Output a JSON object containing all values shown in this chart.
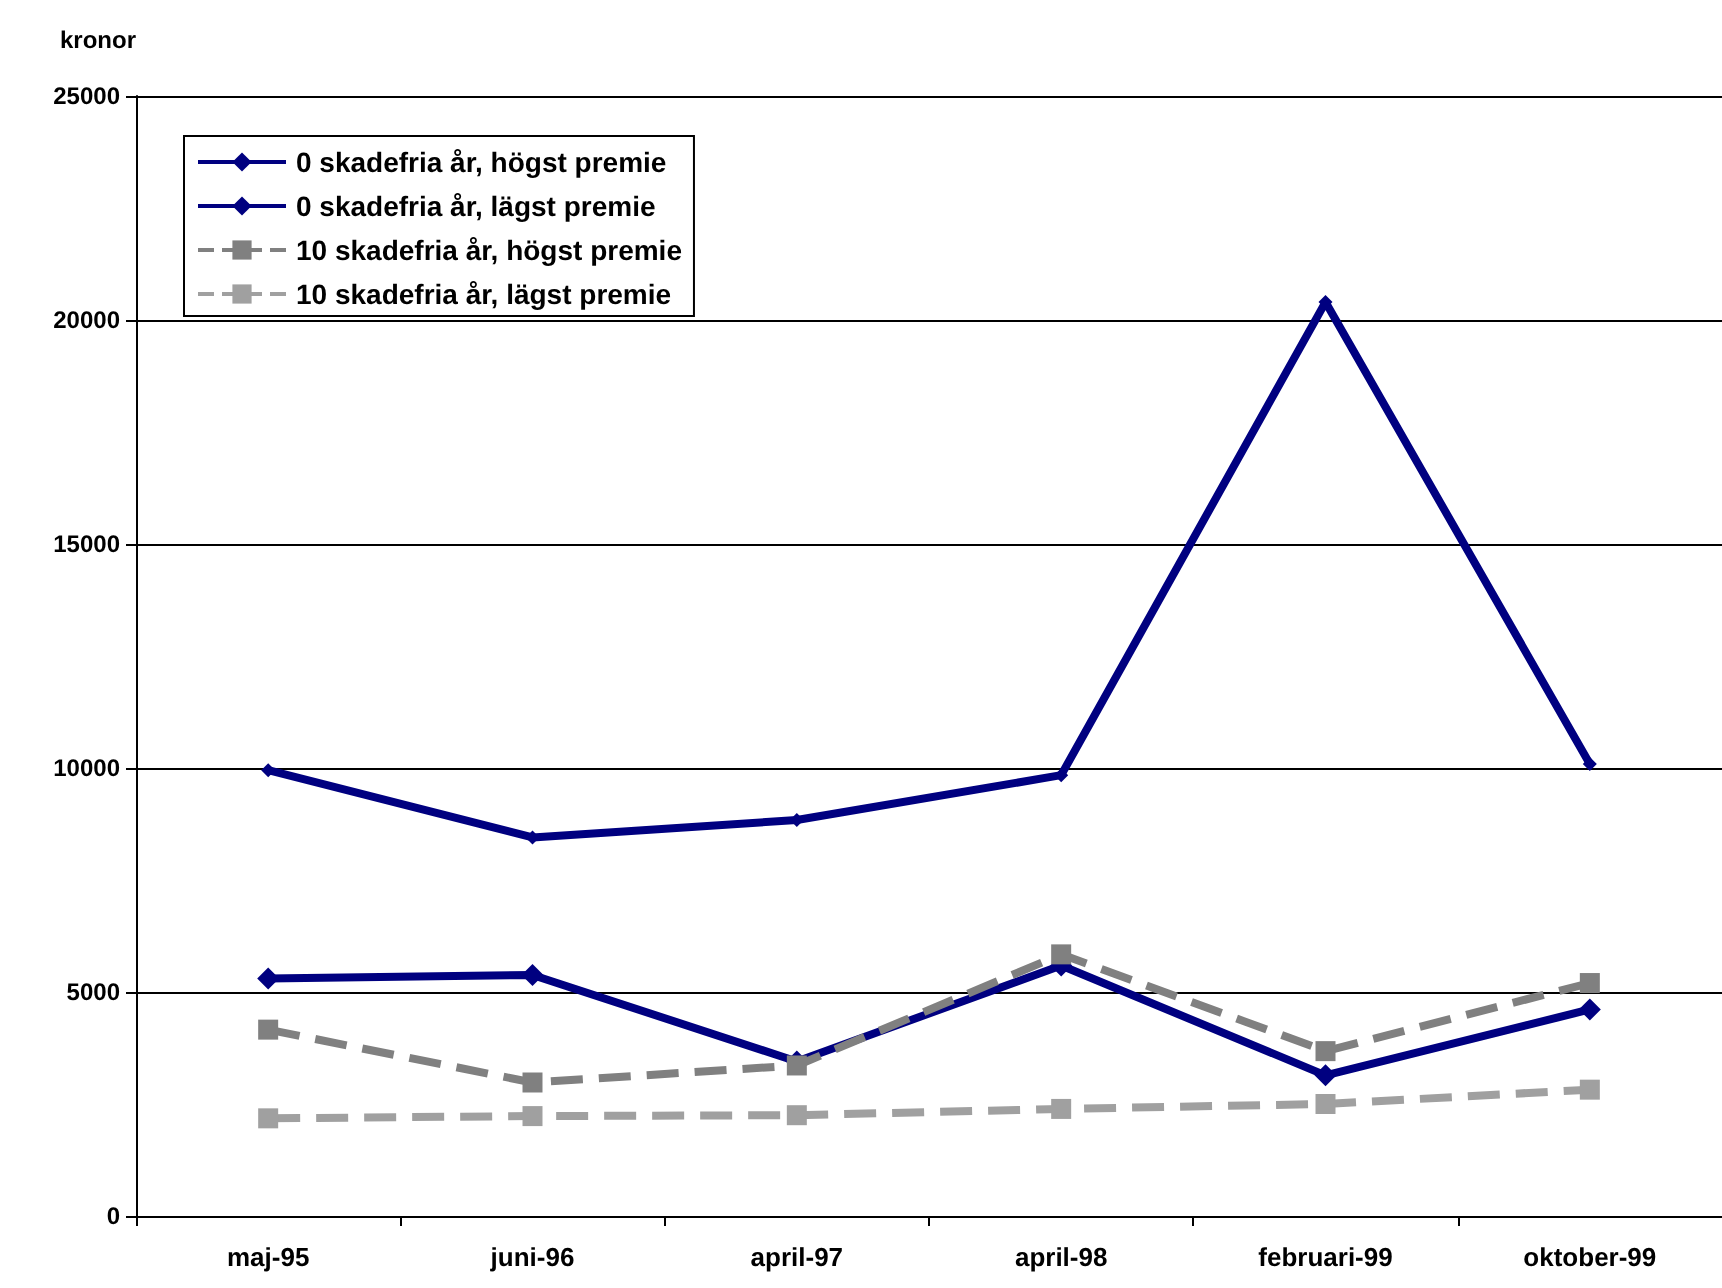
{
  "chart_data": {
    "type": "line",
    "ylabel": "kronor",
    "categories": [
      "maj-95",
      "juni-96",
      "april-97",
      "april-98",
      "februari-99",
      "oktober-99"
    ],
    "series": [
      {
        "name": "0 skadefria år, högst premie",
        "color": "#000080",
        "marker": "diamond",
        "line_style": "solid",
        "values": [
          9950,
          8450,
          8840,
          9840,
          20400,
          10090
        ]
      },
      {
        "name": "0 skadefria år, lägst premie",
        "color": "#000080",
        "marker": "diamond",
        "line_style": "solid",
        "values": [
          5300,
          5380,
          3450,
          5590,
          3140,
          4610
        ]
      },
      {
        "name": "10 skadefria år, högst premie",
        "color": "#808080",
        "marker": "square",
        "line_style": "dashed",
        "values": [
          4160,
          2980,
          3360,
          5840,
          3680,
          5200
        ]
      },
      {
        "name": "10 skadefria år, lägst premie",
        "color": "#a0a0a0",
        "marker": "square",
        "line_style": "dashed",
        "values": [
          2180,
          2230,
          2250,
          2390,
          2500,
          2820
        ]
      }
    ],
    "ylim": [
      0,
      25000
    ],
    "yticks": [
      0,
      5000,
      10000,
      15000,
      20000,
      25000
    ],
    "grid": "y",
    "legend": "top left"
  }
}
